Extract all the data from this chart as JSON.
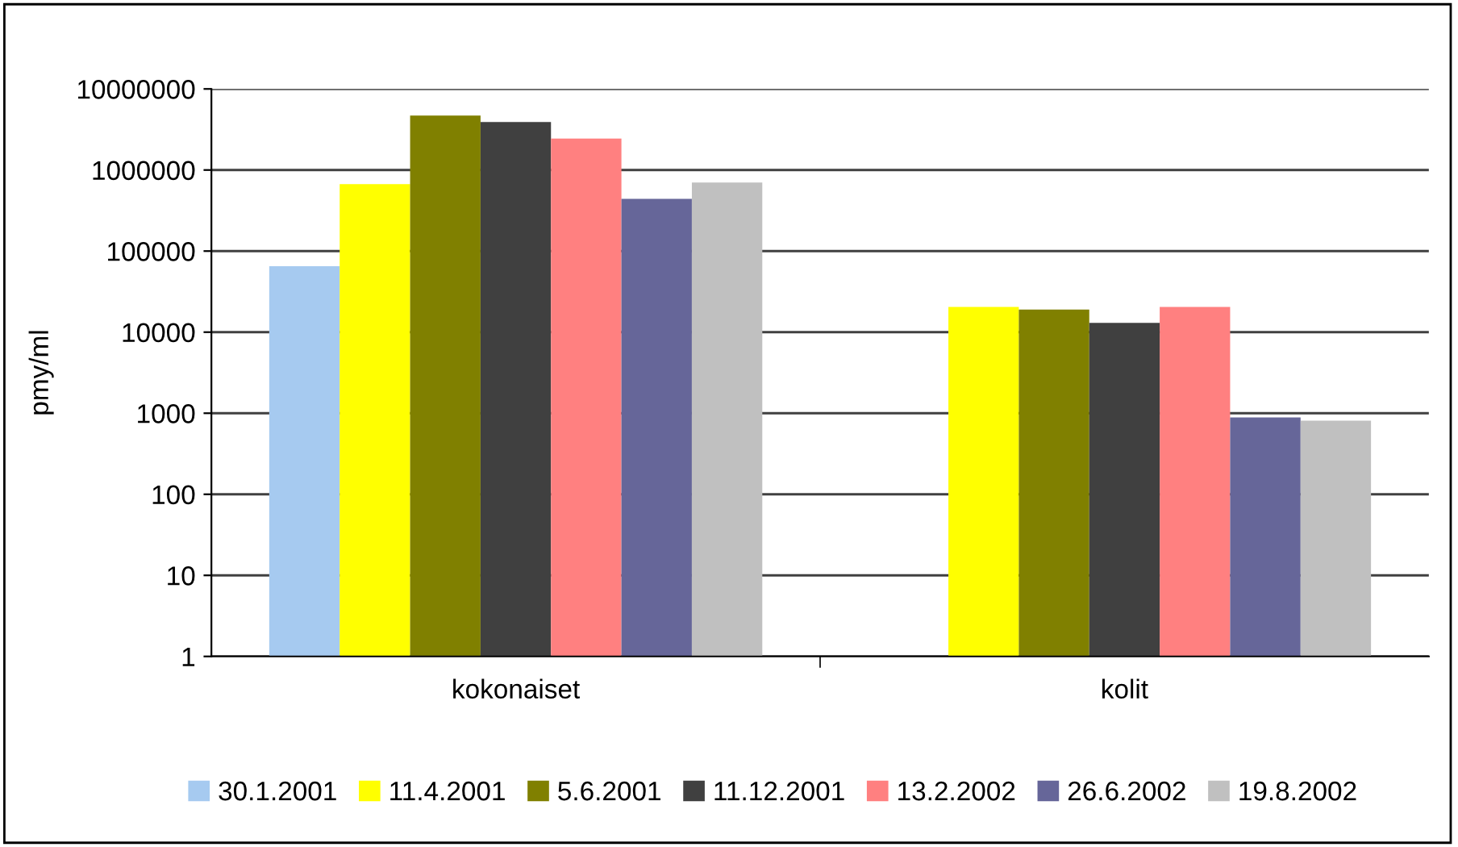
{
  "chart_data": {
    "type": "bar",
    "ylabel": "pmy/ml",
    "categories": [
      "kokonaiset",
      "kolit"
    ],
    "series": [
      {
        "name": "30.1.2001",
        "color": "#a6caf0",
        "values": [
          65000,
          null
        ]
      },
      {
        "name": "11.4.2001",
        "color": "#ffff00",
        "values": [
          670000,
          20500
        ]
      },
      {
        "name": "5.6.2001",
        "color": "#808000",
        "values": [
          4700000,
          19000
        ]
      },
      {
        "name": "11.12.2001",
        "color": "#404040",
        "values": [
          3900000,
          13000
        ]
      },
      {
        "name": "13.2.2002",
        "color": "#ff8080",
        "values": [
          2450000,
          20500
        ]
      },
      {
        "name": "26.6.2002",
        "color": "#666699",
        "values": [
          440000,
          885
        ]
      },
      {
        "name": "19.8.2002",
        "color": "#c0c0c0",
        "values": [
          700000,
          810
        ]
      }
    ],
    "log": "y",
    "ylim": [
      1,
      10000000
    ],
    "yticks": [
      1,
      10,
      100,
      1000,
      10000,
      100000,
      1000000,
      10000000
    ],
    "grid": "y",
    "legend": "bottom"
  }
}
